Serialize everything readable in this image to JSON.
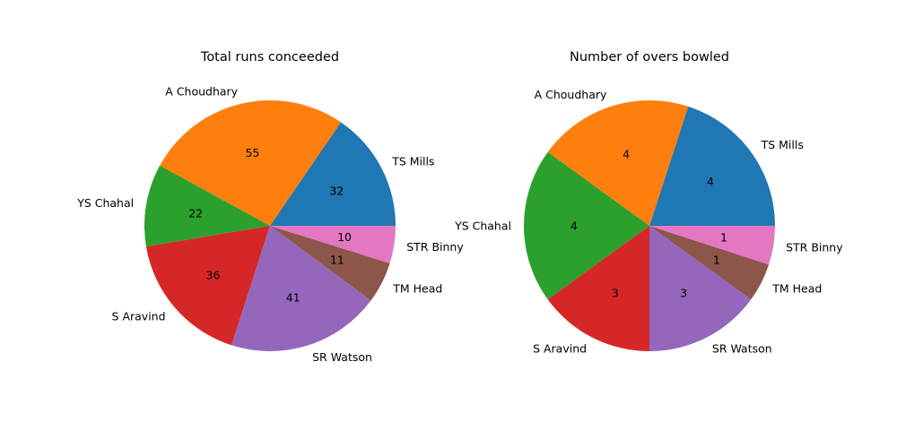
{
  "chart_data": [
    {
      "type": "pie",
      "title": "Total runs conceeded",
      "categories": [
        "TS Mills",
        "A Choudhary",
        "YS Chahal",
        "S Aravind",
        "SR Watson",
        "TM Head",
        "STR Binny"
      ],
      "values": [
        32,
        55,
        22,
        36,
        41,
        11,
        10
      ],
      "colors": [
        "#1f77b4",
        "#ff7f0e",
        "#2ca02c",
        "#d62728",
        "#9467bd",
        "#8c564b",
        "#e377c2"
      ],
      "start_angle": 0,
      "direction": "counterclockwise"
    },
    {
      "type": "pie",
      "title": "Number of overs bowled",
      "categories": [
        "TS Mills",
        "A Choudhary",
        "YS Chahal",
        "S Aravind",
        "SR Watson",
        "TM Head",
        "STR Binny"
      ],
      "values": [
        4,
        4,
        4,
        3,
        3,
        1,
        1
      ],
      "colors": [
        "#1f77b4",
        "#ff7f0e",
        "#2ca02c",
        "#d62728",
        "#9467bd",
        "#8c564b",
        "#e377c2"
      ],
      "start_angle": 0,
      "direction": "counterclockwise"
    }
  ]
}
